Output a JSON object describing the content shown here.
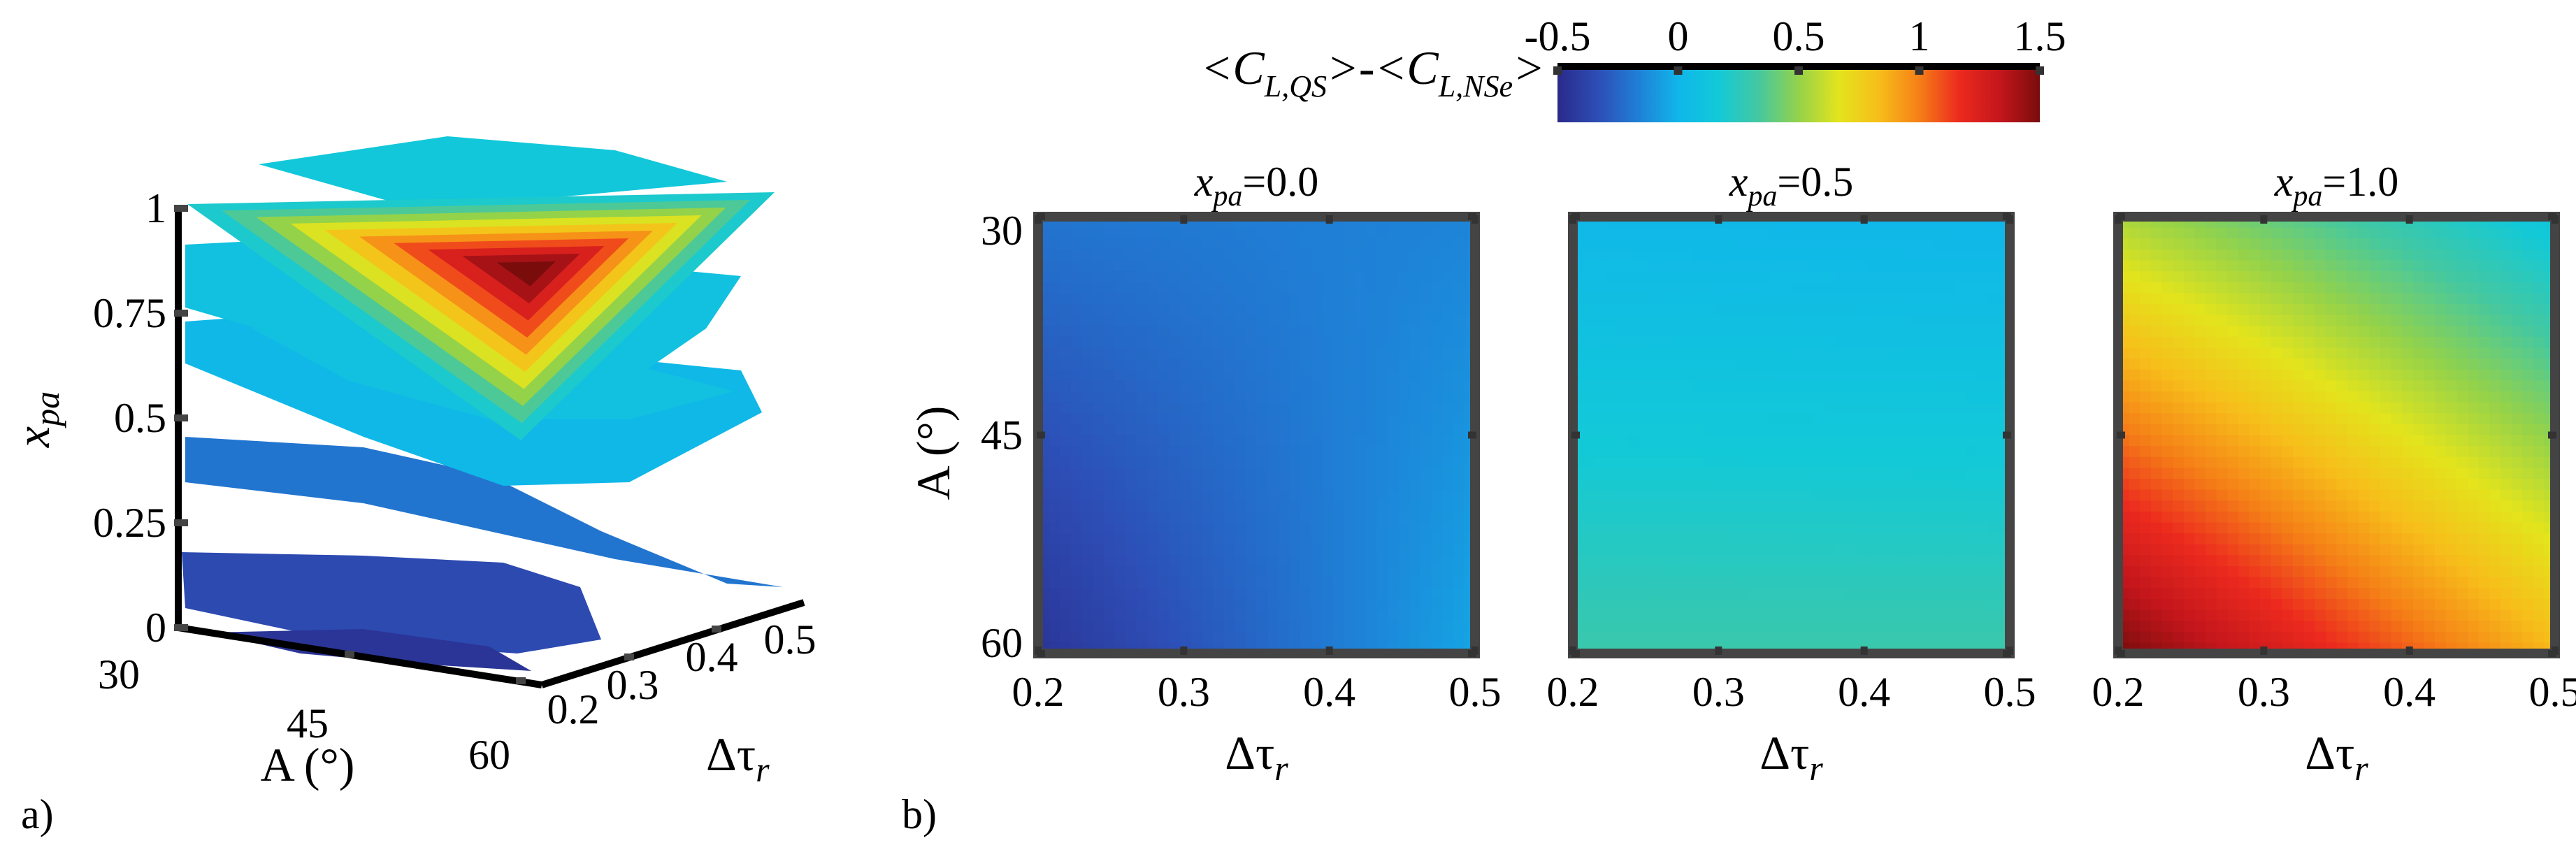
{
  "panel_labels": {
    "a": "a)",
    "b": "b)"
  },
  "colors": {
    "colormap": [
      "#2a2a8a",
      "#2d4db5",
      "#1f7fd6",
      "#10b6ea",
      "#12c9d8",
      "#45c8a0",
      "#94d24a",
      "#e3e41c",
      "#f7bd1a",
      "#f57f17",
      "#ec2a1e",
      "#c4161c",
      "#7a0c0c"
    ],
    "frame": "#444444"
  },
  "colorbar": {
    "label_parts": [
      "<C",
      "L,QS",
      ">-<C",
      "L,NSe",
      ">"
    ],
    "ticks": [
      "-0.5",
      "0",
      "0.5",
      "1",
      "1.5"
    ],
    "range": [
      -0.5,
      1.5
    ]
  },
  "chart_data": [
    {
      "type": "contour3d",
      "panel": "a)",
      "xlabel": "A (°)",
      "ylabel_parts": [
        "Δτ",
        "r"
      ],
      "zlabel_parts": [
        "x",
        "pa"
      ],
      "x_ticks": [
        "30",
        "45",
        "60"
      ],
      "y_ticks": [
        "0.2",
        "0.3",
        "0.4",
        "0.5"
      ],
      "z_ticks": [
        "0",
        "0.25",
        "0.5",
        "0.75",
        "1"
      ],
      "z_levels": [
        0,
        0.25,
        0.5,
        0.75,
        1
      ],
      "color_range": [
        -0.5,
        1.5
      ]
    },
    {
      "type": "heatmap",
      "panel": "b)",
      "title_parts": [
        "x",
        "pa",
        "=0.0"
      ],
      "xlabel_parts": [
        "Δτ",
        "r"
      ],
      "ylabel": "A (°)",
      "x_ticks": [
        "0.2",
        "0.3",
        "0.4",
        "0.5"
      ],
      "y_ticks": [
        "30",
        "45",
        "60"
      ],
      "x_range": [
        0.2,
        0.5
      ],
      "y_range": [
        30,
        60
      ],
      "corners": {
        "top_left": -0.2,
        "top_right": -0.15,
        "bottom_left": -0.45,
        "bottom_right": -0.05
      }
    },
    {
      "type": "heatmap",
      "panel": "b)",
      "title_parts": [
        "x",
        "pa",
        "=0.5"
      ],
      "xlabel_parts": [
        "Δτ",
        "r"
      ],
      "x_ticks": [
        "0.2",
        "0.3",
        "0.4",
        "0.5"
      ],
      "x_range": [
        0.2,
        0.5
      ],
      "y_range": [
        30,
        60
      ],
      "corners": {
        "top_left": 0.02,
        "top_right": 0.0,
        "bottom_left": 0.3,
        "bottom_right": 0.3
      }
    },
    {
      "type": "heatmap",
      "panel": "b)",
      "title_parts": [
        "x",
        "pa",
        "=1.0"
      ],
      "xlabel_parts": [
        "Δτ",
        "r"
      ],
      "x_ticks": [
        "0.2",
        "0.3",
        "0.4",
        "0.5"
      ],
      "x_range": [
        0.2,
        0.5
      ],
      "y_range": [
        30,
        60
      ],
      "corners": {
        "top_left": 0.55,
        "top_right": 0.12,
        "bottom_left": 1.5,
        "bottom_right": 0.85
      }
    }
  ]
}
